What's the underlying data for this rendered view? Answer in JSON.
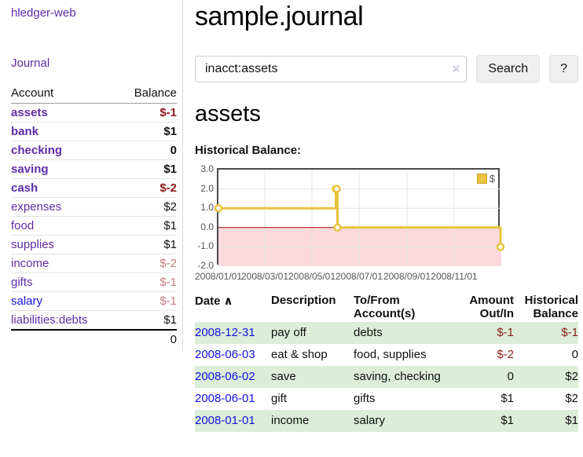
{
  "sidebar": {
    "brand": "hledger-web",
    "nav": {
      "journal": "Journal"
    },
    "table": {
      "account_header": "Account",
      "balance_header": "Balance"
    },
    "accounts": [
      {
        "name": "assets",
        "depth": 1,
        "balance": "$-1",
        "in_query": true,
        "balance_tone": "neg-strong"
      },
      {
        "name": "bank",
        "depth": 2,
        "balance": "$1",
        "in_query": true,
        "balance_tone": "normal"
      },
      {
        "name": "checking",
        "depth": 3,
        "balance": "0",
        "in_query": true,
        "balance_tone": "normal"
      },
      {
        "name": "saving",
        "depth": 3,
        "balance": "$1",
        "in_query": true,
        "balance_tone": "normal"
      },
      {
        "name": "cash",
        "depth": 2,
        "balance": "$-2",
        "in_query": true,
        "balance_tone": "neg-strong"
      },
      {
        "name": "expenses",
        "depth": 1,
        "balance": "$2",
        "in_query": false,
        "balance_tone": "normal"
      },
      {
        "name": "food",
        "depth": 2,
        "balance": "$1",
        "in_query": false,
        "balance_tone": "normal"
      },
      {
        "name": "supplies",
        "depth": 2,
        "balance": "$1",
        "in_query": false,
        "balance_tone": "normal"
      },
      {
        "name": "income",
        "depth": 1,
        "balance": "$-2",
        "in_query": false,
        "balance_tone": "neg-soft"
      },
      {
        "name": "gifts",
        "depth": 2,
        "balance": "$-1",
        "in_query": false,
        "balance_tone": "neg-soft"
      },
      {
        "name": "salary",
        "depth": 2,
        "balance": "$-1",
        "in_query": false,
        "balance_tone": "neg-soft",
        "link_color": "blue"
      },
      {
        "name": "liabilities:debts",
        "depth": 1,
        "balance": "$1",
        "in_query": false,
        "balance_tone": "normal"
      }
    ],
    "total": "0"
  },
  "main": {
    "title": "sample.journal",
    "search": {
      "value": "inacct:assets",
      "clear_icon": "×",
      "search_button": "Search",
      "help_button": "?"
    },
    "account_heading": "assets",
    "chart_heading": "Historical Balance:"
  },
  "register": {
    "headers": {
      "date": "Date",
      "sort_icon": "∧",
      "description": "Description",
      "account": "To/From Account(s)",
      "amount": "Amount Out/In",
      "balance": "Historical Balance"
    },
    "rows": [
      {
        "date": "2008-12-31",
        "description": "pay off",
        "account": "debts",
        "amount": "$-1",
        "balance": "$-1",
        "amount_tone": "neg",
        "balance_tone": "neg"
      },
      {
        "date": "2008-06-03",
        "description": "eat & shop",
        "account": "food, supplies",
        "amount": "$-2",
        "balance": "0",
        "amount_tone": "neg",
        "balance_tone": "normal"
      },
      {
        "date": "2008-06-02",
        "description": "save",
        "account": "saving, checking",
        "amount": "0",
        "balance": "$2",
        "amount_tone": "normal",
        "balance_tone": "normal"
      },
      {
        "date": "2008-06-01",
        "description": "gift",
        "account": "gifts",
        "amount": "$1",
        "balance": "$2",
        "amount_tone": "normal",
        "balance_tone": "normal"
      },
      {
        "date": "2008-01-01",
        "description": "income",
        "account": "salary",
        "amount": "$1",
        "balance": "$1",
        "amount_tone": "normal",
        "balance_tone": "normal"
      }
    ]
  },
  "chart_data": {
    "type": "line",
    "title": "Historical Balance:",
    "step": true,
    "series": [
      {
        "name": "$",
        "color": "#e9c340",
        "points": [
          {
            "date": "2008-01-01",
            "value": 1
          },
          {
            "date": "2008-06-01",
            "value": 2
          },
          {
            "date": "2008-06-02",
            "value": 2
          },
          {
            "date": "2008-06-03",
            "value": 0
          },
          {
            "date": "2008-12-31",
            "value": -1
          }
        ]
      }
    ],
    "ylim": [
      -2,
      3
    ],
    "yticks": [
      "3.0",
      "2.0",
      "1.0",
      "0.0",
      "-1.0",
      "-2.0"
    ],
    "xticks": [
      "2008/01/01",
      "2008/03/01",
      "2008/05/01",
      "2008/07/01",
      "2008/09/01",
      "2008/11/01"
    ],
    "xrange": [
      "2008-01-01",
      "2008-12-31"
    ],
    "grid": true,
    "legend_position": "top-right",
    "negative_region_color": "#fbd9dc",
    "zero_line_color": "#a40000"
  },
  "colors": {
    "link_purple": "#5e2ca5",
    "link_blue": "#1313e0",
    "negative_strong": "#8e1b1b",
    "negative_soft": "#c47c7c",
    "row_stripe_green": "#dcedd8",
    "series_gold": "#e9c340",
    "chart_border": "#4a4a4a",
    "grid_line": "#e4e4e4"
  }
}
